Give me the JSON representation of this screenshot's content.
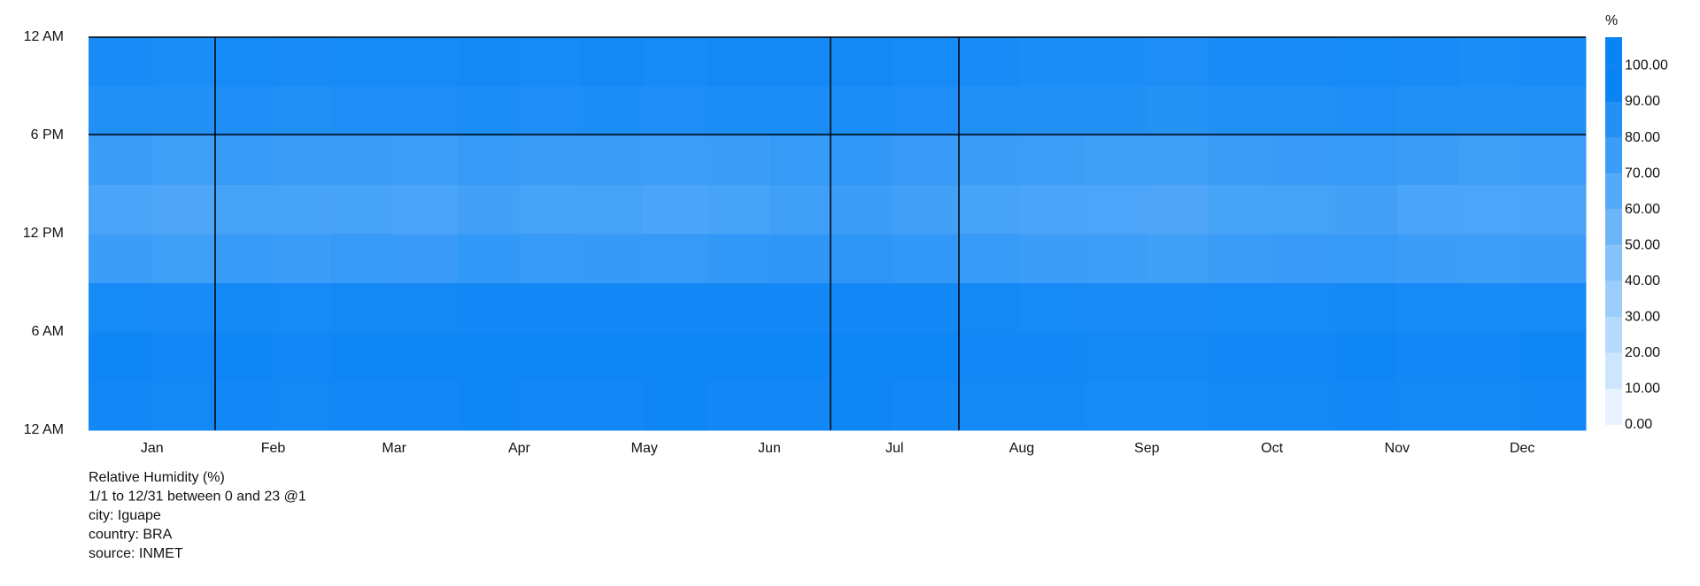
{
  "chart_data": {
    "type": "heatmap",
    "ylim": [
      0,
      24
    ],
    "yticks": [
      {
        "value": 0,
        "label": "12 AM"
      },
      {
        "value": 6,
        "label": "6 AM"
      },
      {
        "value": 12,
        "label": "12 PM"
      },
      {
        "value": 18,
        "label": "6 PM"
      },
      {
        "value": 24,
        "label": "12 AM"
      }
    ],
    "xlim": [
      0,
      365
    ],
    "xticks": [
      {
        "value": 15.5,
        "label": "Jan"
      },
      {
        "value": 45,
        "label": "Feb"
      },
      {
        "value": 74.5,
        "label": "Mar"
      },
      {
        "value": 105,
        "label": "Apr"
      },
      {
        "value": 135.5,
        "label": "May"
      },
      {
        "value": 166,
        "label": "Jun"
      },
      {
        "value": 196.5,
        "label": "Jul"
      },
      {
        "value": 227.5,
        "label": "Aug"
      },
      {
        "value": 258,
        "label": "Sep"
      },
      {
        "value": 288.5,
        "label": "Oct"
      },
      {
        "value": 319,
        "label": "Nov"
      },
      {
        "value": 349.5,
        "label": "Dec"
      }
    ],
    "xbins": [
      0,
      15.5,
      31,
      45,
      59,
      74,
      90,
      105,
      120,
      135,
      151,
      166,
      181,
      196,
      212,
      227,
      243,
      258,
      273,
      288,
      304,
      319,
      334,
      349,
      365
    ],
    "ybins": [
      0,
      3,
      6,
      9,
      12,
      15,
      18,
      21,
      24
    ],
    "values": [
      [
        97,
        96,
        97,
        96,
        97,
        97,
        98,
        97,
        97,
        98,
        97,
        97,
        98,
        97,
        96,
        96,
        95,
        95,
        96,
        96,
        97,
        96,
        96,
        97
      ],
      [
        98,
        97,
        98,
        97,
        98,
        98,
        98,
        98,
        98,
        98,
        98,
        98,
        98,
        98,
        97,
        97,
        96,
        96,
        97,
        97,
        98,
        97,
        97,
        98
      ],
      [
        95,
        94,
        96,
        95,
        96,
        96,
        97,
        97,
        97,
        97,
        97,
        97,
        97,
        97,
        96,
        95,
        94,
        94,
        95,
        95,
        96,
        95,
        95,
        95
      ],
      [
        80,
        78,
        82,
        80,
        82,
        81,
        84,
        82,
        83,
        82,
        84,
        85,
        86,
        84,
        82,
        80,
        79,
        78,
        80,
        81,
        82,
        80,
        79,
        80
      ],
      [
        74,
        72,
        76,
        75,
        75,
        74,
        77,
        75,
        76,
        74,
        75,
        78,
        80,
        77,
        75,
        74,
        73,
        72,
        75,
        76,
        77,
        74,
        73,
        74
      ],
      [
        80,
        78,
        82,
        80,
        80,
        79,
        82,
        80,
        80,
        79,
        80,
        82,
        84,
        81,
        80,
        79,
        78,
        78,
        80,
        81,
        82,
        80,
        78,
        79
      ],
      [
        91,
        90,
        92,
        91,
        92,
        92,
        93,
        92,
        93,
        92,
        93,
        93,
        93,
        92,
        91,
        90,
        90,
        89,
        91,
        91,
        92,
        91,
        90,
        91
      ],
      [
        94,
        93,
        95,
        94,
        95,
        95,
        96,
        95,
        96,
        95,
        96,
        96,
        96,
        95,
        94,
        93,
        93,
        92,
        94,
        94,
        95,
        94,
        93,
        94
      ]
    ],
    "color_low": "#ffffff",
    "color_high": "#0a84f5",
    "colorbar_title": "%",
    "colorbar_lim": [
      0,
      108
    ],
    "colorbar_ticks": [
      {
        "value": 0,
        "label": "0.00"
      },
      {
        "value": 10,
        "label": "10.00"
      },
      {
        "value": 20,
        "label": "20.00"
      },
      {
        "value": 30,
        "label": "30.00"
      },
      {
        "value": 40,
        "label": "40.00"
      },
      {
        "value": 50,
        "label": "50.00"
      },
      {
        "value": 60,
        "label": "60.00"
      },
      {
        "value": 70,
        "label": "70.00"
      },
      {
        "value": 80,
        "label": "80.00"
      },
      {
        "value": 90,
        "label": "90.00"
      },
      {
        "value": 100,
        "label": "100.00"
      }
    ],
    "notes": [
      "Relative Humidity (%)",
      "1/1 to 12/31 between 0 and 23 @1",
      "city: Iguape",
      "country: BRA",
      "source: INMET"
    ]
  }
}
